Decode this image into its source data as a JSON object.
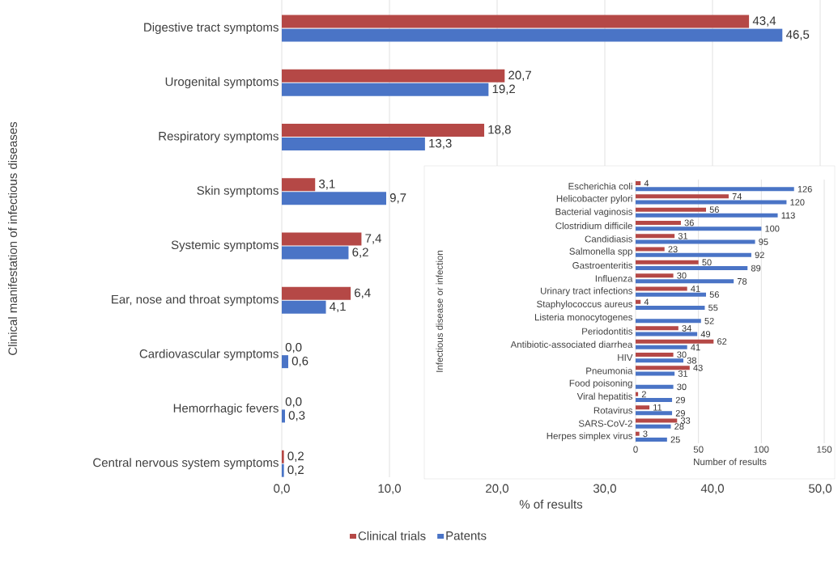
{
  "chart_data": [
    {
      "type": "bar",
      "orientation": "horizontal",
      "categories": [
        "Digestive tract symptoms",
        "Urogenital symptoms",
        "Respiratory symptoms",
        "Skin symptoms",
        "Systemic symptoms",
        "Ear, nose and throat symptoms",
        "Cardiovascular symptoms",
        "Hemorrhagic fevers",
        "Central nervous system symptoms"
      ],
      "series": [
        {
          "name": "Clinical trials",
          "color": "#b54846",
          "values": [
            43.4,
            20.7,
            18.8,
            3.1,
            7.4,
            6.4,
            0.0,
            0.0,
            0.2
          ],
          "value_labels": [
            "43,4",
            "20,7",
            "18,8",
            "3,1",
            "7,4",
            "6,4",
            "0,0",
            "0,0",
            "0,2"
          ]
        },
        {
          "name": "Patents",
          "color": "#4a74c6",
          "values": [
            46.5,
            19.2,
            13.3,
            9.7,
            6.2,
            4.1,
            0.6,
            0.3,
            0.2
          ],
          "value_labels": [
            "46,5",
            "19,2",
            "13,3",
            "9,7",
            "6,2",
            "4,1",
            "0,6",
            "0,3",
            "0,2"
          ]
        }
      ],
      "xlabel": "% of results",
      "ylabel": "Clinical manifestation of infectious diseases",
      "xlim": [
        0,
        50
      ],
      "xticks": [
        {
          "value": 0,
          "label": "0,0"
        },
        {
          "value": 10,
          "label": "10,0"
        },
        {
          "value": 20,
          "label": "20,0"
        },
        {
          "value": 30,
          "label": "30,0"
        },
        {
          "value": 40,
          "label": "40,0"
        },
        {
          "value": 50,
          "label": "50,0"
        }
      ],
      "grid": "x",
      "legend": "bottom"
    },
    {
      "type": "bar",
      "orientation": "horizontal",
      "categories": [
        "Escherichia coli",
        "Helicobacter pylori",
        "Bacterial vaginosis",
        "Clostridium difficile",
        "Candidiasis",
        "Salmonella spp",
        "Gastroenteritis",
        "Influenza",
        "Urinary tract infections",
        "Staphylococcus aureus",
        "Listeria monocytogenes",
        "Periodontitis",
        "Antibiotic-associated diarrhea",
        "HIV",
        "Pneumonia",
        "Food poisoning",
        "Viral hepatitis",
        "Rotavirus",
        "SARS-CoV-2",
        "Herpes simplex virus"
      ],
      "series": [
        {
          "color": "#b54846",
          "values": [
            4,
            74,
            56,
            36,
            31,
            23,
            50,
            30,
            41,
            4,
            null,
            34,
            62,
            30,
            43,
            null,
            2,
            11,
            33,
            3
          ]
        },
        {
          "color": "#4a74c6",
          "values": [
            126,
            120,
            113,
            100,
            95,
            92,
            89,
            78,
            56,
            55,
            52,
            49,
            41,
            38,
            31,
            30,
            29,
            29,
            28,
            25
          ]
        }
      ],
      "xlabel": "Number of results",
      "ylabel": "Infectious disease or infection",
      "xlim": [
        0,
        150
      ],
      "xticks": [
        0,
        50,
        100,
        150
      ],
      "grid": "x",
      "data_labels": true
    }
  ]
}
